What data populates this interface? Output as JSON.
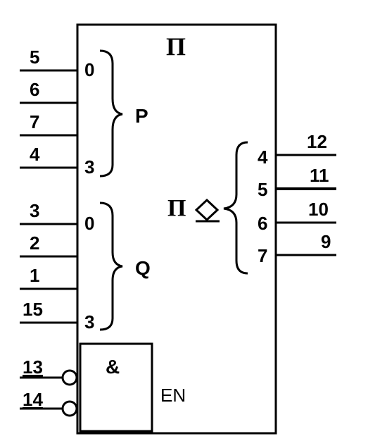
{
  "block": {
    "function_label": "Π",
    "group_p_label": "P",
    "group_q_label": "Q",
    "output_function_label": "Π",
    "gate_label": "&",
    "enable_label": "EN"
  },
  "inputs_p": [
    {
      "pin": "5",
      "bit": "0"
    },
    {
      "pin": "6",
      "bit": ""
    },
    {
      "pin": "7",
      "bit": ""
    },
    {
      "pin": "4",
      "bit": "3"
    }
  ],
  "inputs_q": [
    {
      "pin": "3",
      "bit": "0"
    },
    {
      "pin": "2",
      "bit": ""
    },
    {
      "pin": "1",
      "bit": ""
    },
    {
      "pin": "15",
      "bit": "3"
    }
  ],
  "enable_inputs": [
    {
      "pin": "13"
    },
    {
      "pin": "14"
    }
  ],
  "outputs": [
    {
      "pin": "12",
      "bit": "4"
    },
    {
      "pin": "11",
      "bit": "5"
    },
    {
      "pin": "10",
      "bit": "6"
    },
    {
      "pin": "9",
      "bit": "7"
    }
  ]
}
